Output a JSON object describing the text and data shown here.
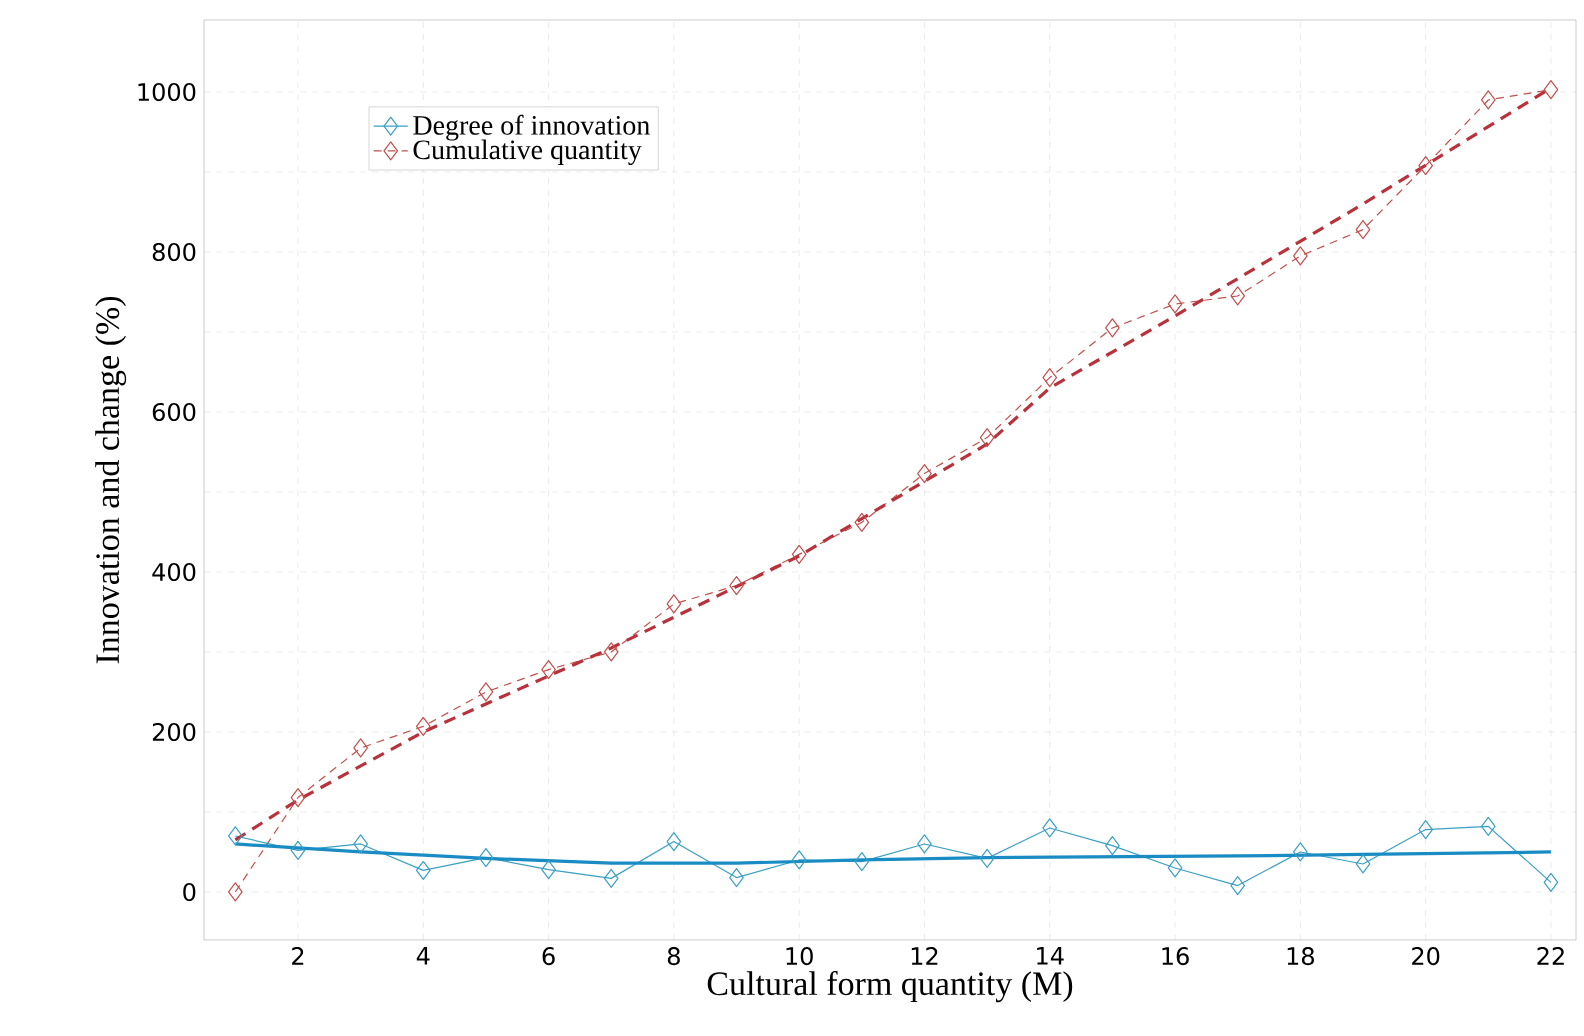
{
  "chart_data": {
    "type": "line",
    "xlabel": "Cultural form quantity (M)",
    "ylabel": "Innovation and change (%)",
    "x": [
      1,
      2,
      3,
      4,
      5,
      6,
      7,
      8,
      9,
      10,
      11,
      12,
      13,
      14,
      15,
      16,
      17,
      18,
      19,
      20,
      21,
      22
    ],
    "series": [
      {
        "name": "Degree of innovation",
        "color": "#3a9fc4",
        "marker": "diamond",
        "line_style": "solid",
        "values": [
          70,
          52,
          60,
          27,
          43,
          28,
          17,
          63,
          18,
          40,
          38,
          60,
          42,
          80,
          58,
          30,
          8,
          50,
          35,
          78,
          82,
          12
        ]
      },
      {
        "name": "Cumulative quantity",
        "color": "#c0504d",
        "marker": "diamond",
        "line_style": "dashed",
        "values": [
          0,
          118,
          180,
          207,
          250,
          278,
          300,
          360,
          383,
          422,
          462,
          523,
          568,
          643,
          705,
          735,
          745,
          795,
          828,
          908,
          990,
          1003
        ]
      },
      {
        "type": "line",
        "color": "#1a8cc4",
        "marker": "none",
        "line_style": "solid",
        "x": [
          1,
          3,
          5,
          7,
          9,
          11,
          13,
          15,
          17,
          19,
          22
        ],
        "values": [
          60,
          50,
          42,
          36,
          36,
          40,
          43,
          44,
          45,
          47,
          50
        ]
      },
      {
        "type": "line",
        "color": "#b8323c",
        "marker": "none",
        "line_style": "dashed",
        "x": [
          1,
          2,
          4,
          7,
          10,
          13,
          14,
          16,
          19,
          22
        ],
        "values": [
          65,
          115,
          200,
          305,
          420,
          560,
          630,
          720,
          860,
          1005
        ]
      }
    ],
    "xlim": [
      0.5,
      22.4
    ],
    "ylim": [
      -60,
      1090
    ],
    "xticks": [
      2,
      4,
      6,
      8,
      10,
      12,
      14,
      16,
      18,
      20,
      22
    ],
    "yticks": [
      0,
      {
        "value": 100,
        "label": null
      },
      200,
      {
        "value": 300,
        "label": null
      },
      400,
      {
        "value": 500,
        "label": null
      },
      600,
      {
        "value": 700,
        "label": null
      },
      800,
      {
        "value": 900,
        "label": null
      },
      1000
    ],
    "grid": true,
    "legend": "top left"
  }
}
